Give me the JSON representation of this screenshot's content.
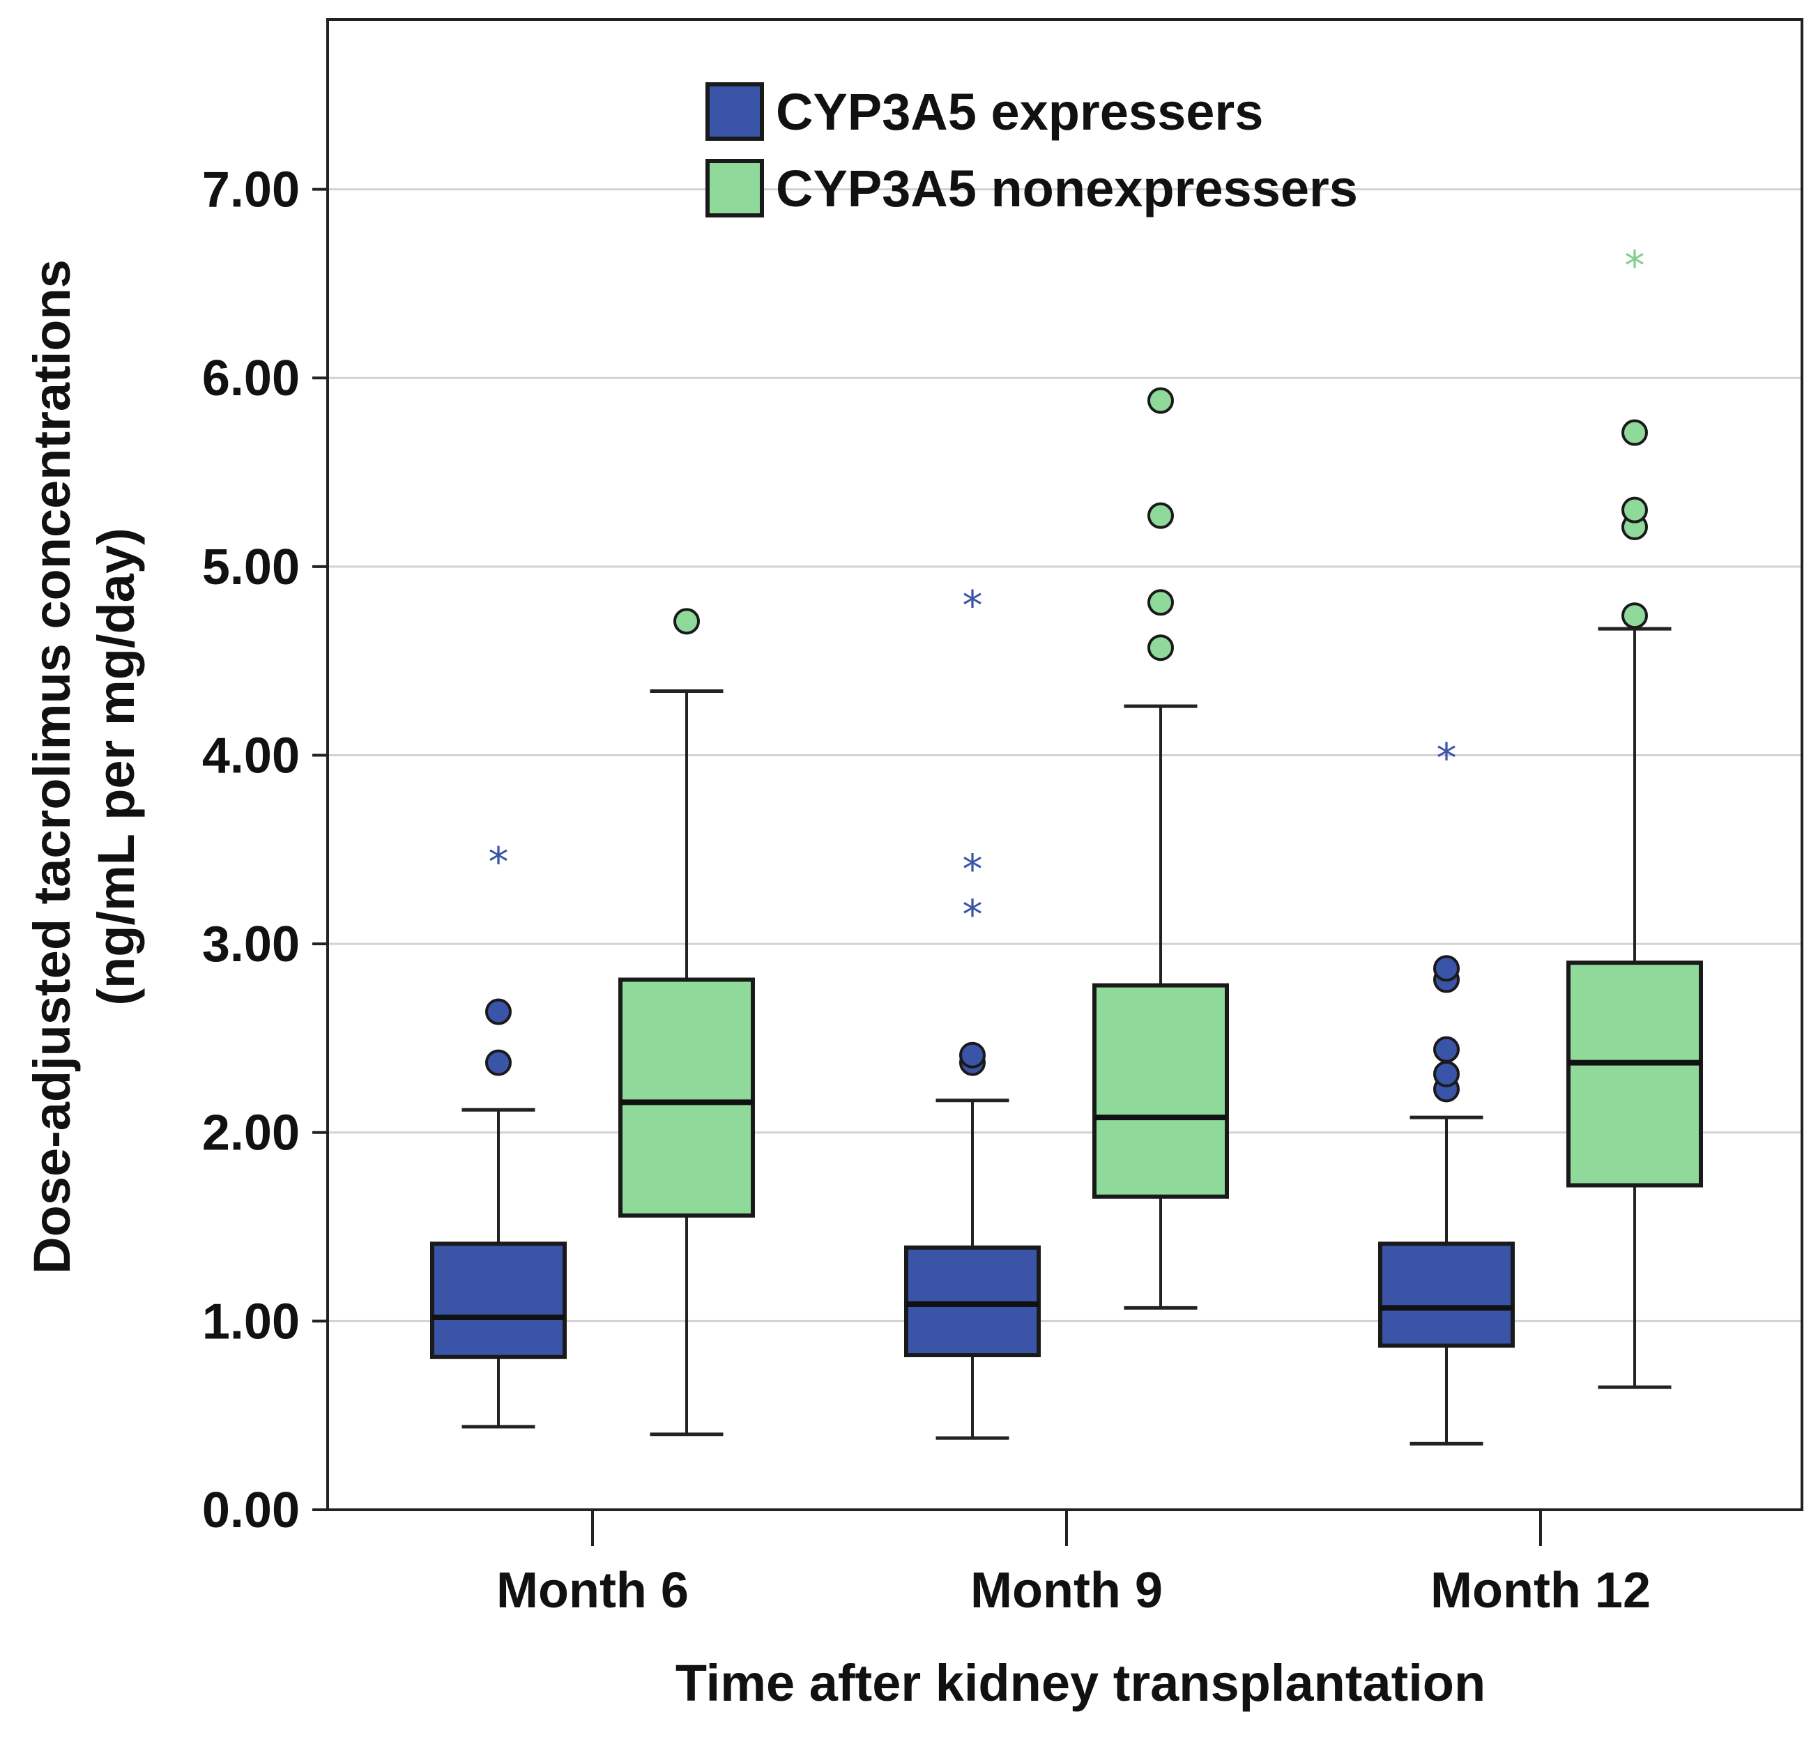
{
  "chart_data": {
    "type": "boxplot",
    "title": "",
    "xlabel": "Time after kidney transplantation",
    "ylabel_lines": [
      "Dose-adjusted tacrolimus concentrations",
      "(ng/mL per mg/day)"
    ],
    "ylim": [
      0,
      7.9
    ],
    "yticks": [
      0,
      1,
      2,
      3,
      4,
      5,
      6,
      7
    ],
    "ytick_labels": [
      "0.00",
      "1.00",
      "2.00",
      "3.00",
      "4.00",
      "5.00",
      "6.00",
      "7.00"
    ],
    "grid": true,
    "legend_position": "top-center",
    "categories": [
      "Month 6",
      "Month 9",
      "Month 12"
    ],
    "series": [
      {
        "name": "CYP3A5 expressers",
        "color": "#3a54a8",
        "boxes": [
          {
            "whisker_low": 0.44,
            "q1": 0.81,
            "median": 1.02,
            "q3": 1.41,
            "whisker_high": 2.12,
            "outliers": [
              2.37,
              2.64
            ],
            "extremes": [
              3.45
            ]
          },
          {
            "whisker_low": 0.38,
            "q1": 0.82,
            "median": 1.09,
            "q3": 1.39,
            "whisker_high": 2.17,
            "outliers": [
              2.37,
              2.41
            ],
            "extremes": [
              3.17,
              3.41,
              4.81
            ]
          },
          {
            "whisker_low": 0.35,
            "q1": 0.87,
            "median": 1.07,
            "q3": 1.41,
            "whisker_high": 2.08,
            "outliers": [
              2.23,
              2.31,
              2.44,
              2.81,
              2.87
            ],
            "extremes": [
              4.0
            ]
          }
        ]
      },
      {
        "name": "CYP3A5 nonexpressers",
        "color": "#8fd99b",
        "boxes": [
          {
            "whisker_low": 0.4,
            "q1": 1.56,
            "median": 2.16,
            "q3": 2.81,
            "whisker_high": 4.34,
            "outliers": [
              4.71
            ],
            "extremes": []
          },
          {
            "whisker_low": 1.07,
            "q1": 1.66,
            "median": 2.08,
            "q3": 2.78,
            "whisker_high": 4.26,
            "outliers": [
              4.57,
              4.81,
              5.27,
              5.88
            ],
            "extremes": []
          },
          {
            "whisker_low": 0.65,
            "q1": 1.72,
            "median": 2.37,
            "q3": 2.9,
            "whisker_high": 4.67,
            "outliers": [
              4.74,
              5.21,
              5.3,
              5.71
            ],
            "extremes": [
              6.61
            ]
          }
        ]
      }
    ]
  }
}
